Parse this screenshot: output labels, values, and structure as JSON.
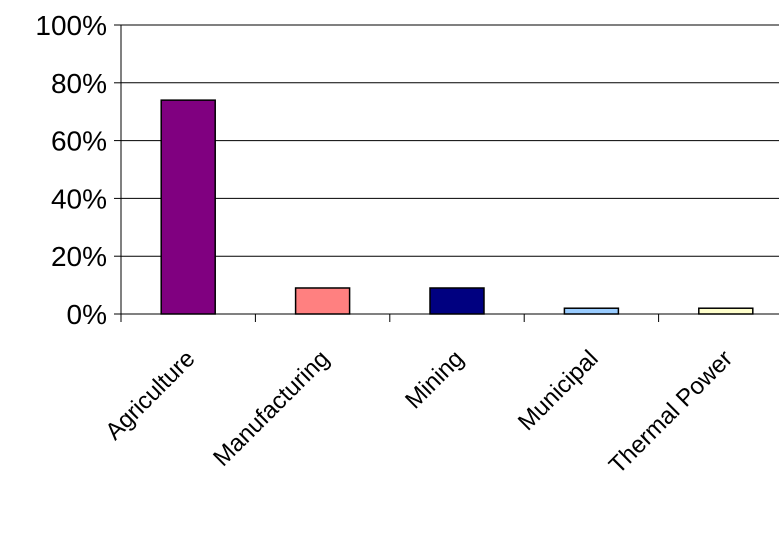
{
  "chart_data": {
    "type": "bar",
    "categories": [
      "Agriculture",
      "Manufacturing",
      "Mining",
      "Municipal",
      "Thermal Power"
    ],
    "values": [
      74,
      9,
      9,
      2,
      2
    ],
    "unit": "%",
    "ylim": [
      0,
      100
    ],
    "y_ticks": [
      "0%",
      "20%",
      "40%",
      "60%",
      "80%",
      "100%"
    ],
    "grid": "horizontal",
    "legend": "none",
    "bar_colors": [
      "#800080",
      "#ff8080",
      "#000080",
      "#99ccff",
      "#ffffcc"
    ]
  }
}
